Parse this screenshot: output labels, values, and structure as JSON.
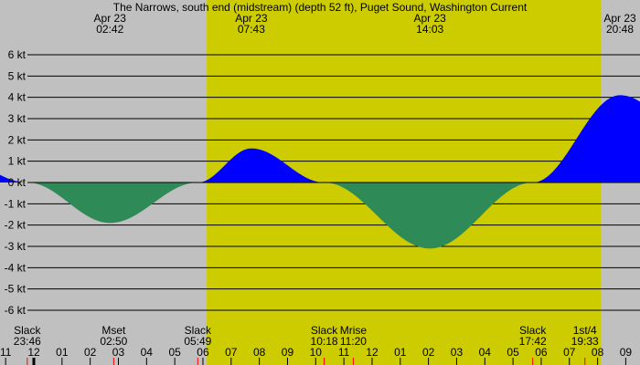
{
  "chart_data": {
    "type": "area",
    "title": "The Narrows, south end (midstream) (depth 52 ft), Puget Sound, Washington Current",
    "y_unit": "kt",
    "ylim": [
      -6.5,
      6.5
    ],
    "y_ticks": [
      "6 kt",
      "5 kt",
      "4 kt",
      "3 kt",
      "2 kt",
      "1 kt",
      "0 kt",
      "-1 kt",
      "-2 kt",
      "-3 kt",
      "-4 kt",
      "-5 kt",
      "-6 kt"
    ],
    "x_tick_labels": [
      "11",
      "12",
      "01",
      "02",
      "03",
      "04",
      "05",
      "06",
      "07",
      "08",
      "09",
      "10",
      "11",
      "12",
      "01",
      "02",
      "03",
      "04",
      "05",
      "06",
      "07",
      "08",
      "09"
    ],
    "grid": true,
    "colors": {
      "night": "#c0c0c0",
      "day": "#cccc00",
      "flood": "#0000ff",
      "ebb": "#2e8b57"
    },
    "daylight": {
      "start": "06:08",
      "end": "20:07"
    },
    "peaks": [
      {
        "date": "Apr 23",
        "time": "02:42",
        "value": -1.9
      },
      {
        "date": "Apr 23",
        "time": "07:43",
        "value": 1.6
      },
      {
        "date": "Apr 23",
        "time": "14:03",
        "value": -3.1
      },
      {
        "date": "Apr 23",
        "time": "20:48",
        "value": 4.1
      }
    ],
    "events": [
      {
        "label": "Slack",
        "time": "23:46",
        "hour": -0.233
      },
      {
        "label": "Mset",
        "time": "02:50",
        "hour": 2.833
      },
      {
        "label": "Slack",
        "time": "05:49",
        "hour": 5.817
      },
      {
        "label": "Slack",
        "time": "10:18",
        "hour": 10.3
      },
      {
        "label": "Mrise",
        "time": "11:20",
        "hour": 11.333
      },
      {
        "label": "Slack",
        "time": "17:42",
        "hour": 17.7
      },
      {
        "label": "1st/4",
        "time": "19:33",
        "hour": 19.55
      }
    ]
  }
}
